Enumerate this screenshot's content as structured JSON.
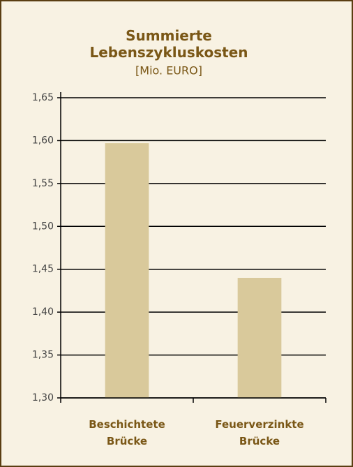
{
  "chart_data": {
    "type": "bar",
    "title": "Summierte Lebenszykluskosten",
    "subtitle": "[Mio. EURO]",
    "categories": [
      "Beschichtete Brücke",
      "Feuerverzinkte Brücke"
    ],
    "values": [
      1.597,
      1.44
    ],
    "color": "#d9c99b",
    "ylim": [
      1.3,
      1.65
    ],
    "yticks": [
      {
        "value": 1.3,
        "label": "1,30"
      },
      {
        "value": 1.35,
        "label": "1,35"
      },
      {
        "value": 1.4,
        "label": "1,40"
      },
      {
        "value": 1.45,
        "label": "1,45"
      },
      {
        "value": 1.5,
        "label": "1,50"
      },
      {
        "value": 1.55,
        "label": "1,55"
      },
      {
        "value": 1.6,
        "label": "1,60"
      },
      {
        "value": 1.65,
        "label": "1,65"
      }
    ],
    "grid": true
  }
}
